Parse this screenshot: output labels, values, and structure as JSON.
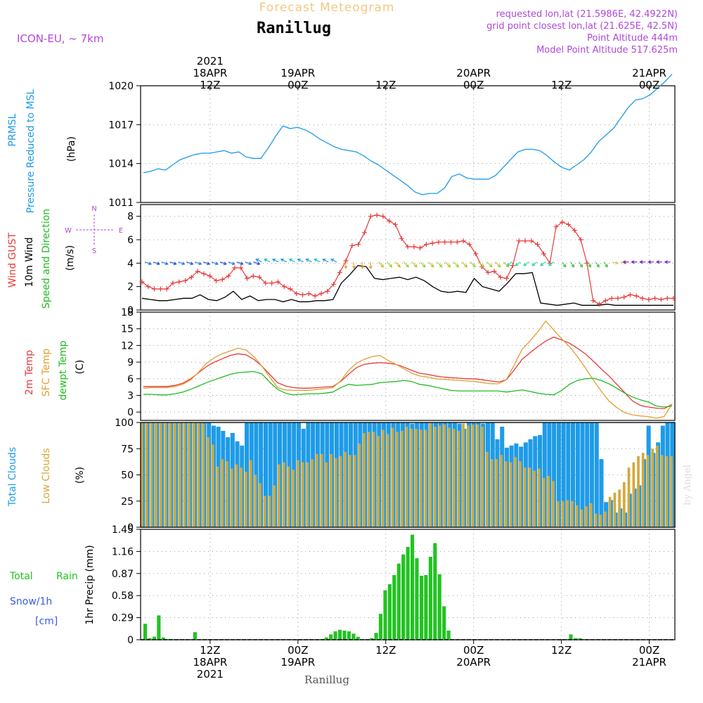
{
  "header": {
    "product": "Forecast Meteogram",
    "location": "Ranillug",
    "model": "ICON-EU, ~ 7km",
    "requested": "requested lon,lat (21.5986E, 42.4922N)",
    "grid_point": "grid point closest lon,lat (21.625E, 42.5N)",
    "point_altitude": "Point Altitude 444m",
    "model_altitude": "Model Point Altitude 517.625m",
    "footer_location": "Ranillug",
    "watermark": "by Angel"
  },
  "time_axis": {
    "top_labels": [
      {
        "line1": "2021",
        "line2": "18APR",
        "line3": "12Z",
        "t": 3
      },
      {
        "line1": "",
        "line2": "19APR",
        "line3": "00Z",
        "t": 15
      },
      {
        "line1": "",
        "line2": "",
        "line3": "12Z",
        "t": 27
      },
      {
        "line1": "",
        "line2": "20APR",
        "line3": "00Z",
        "t": 39
      },
      {
        "line1": "",
        "line2": "",
        "line3": "12Z",
        "t": 51
      },
      {
        "line1": "",
        "line2": "21APR",
        "line3": "00Z",
        "t": 63
      }
    ],
    "bottom_labels": [
      {
        "line1": "12Z",
        "line2": "18APR",
        "line3": "2021",
        "t": 3
      },
      {
        "line1": "00Z",
        "line2": "19APR",
        "line3": "",
        "t": 15
      },
      {
        "line1": "12Z",
        "line2": "",
        "line3": "",
        "t": 27
      },
      {
        "line1": "00Z",
        "line2": "20APR",
        "line3": "",
        "t": 39
      },
      {
        "line1": "12Z",
        "line2": "",
        "line3": "",
        "t": 51
      },
      {
        "line1": "00Z",
        "line2": "21APR",
        "line3": "",
        "t": 63
      }
    ]
  },
  "panels": {
    "pressure": {
      "label1": "PRMSL",
      "label2": "Pressure Reduced to MSL",
      "unit": "(hPa)",
      "color1": "#1e9be8",
      "color2": "#1e9be8"
    },
    "wind": {
      "label1": "Wind GUST",
      "label2": "10m Wind",
      "label3": "Speed and Direction",
      "unit": "(m/s)",
      "compass_n": "N",
      "compass_s": "S",
      "compass_w": "W",
      "compass_e": "E"
    },
    "temp": {
      "label1": "2m Temp",
      "label2": "SFC Temp",
      "label3": "dewpt Temp",
      "unit": "(C)"
    },
    "clouds": {
      "label1": "Total Clouds",
      "label2": "Low Clouds",
      "unit": "(%)"
    },
    "precip": {
      "label1": "Total",
      "label2": "Rain",
      "label3": "Snow/1h",
      "label4": "[cm]",
      "axis_label": "1hr Precip (mm)"
    }
  },
  "colors": {
    "pressure": "#1e9be8",
    "gust": "#e83a3a",
    "wind": "#000000",
    "t2m": "#e83a3a",
    "tsfc": "#e0a030",
    "dewpt": "#22bb22",
    "total_clouds": "#1e9be8",
    "low_clouds": "#d4a838",
    "rain": "#22c322",
    "snow": "#3a5ae8",
    "header_orange": "#f4c882",
    "header_purple": "#b048d8"
  },
  "chart_data": [
    {
      "type": "line",
      "name": "pressure",
      "ylabel": "PRMSL",
      "ylim": [
        1011,
        1020
      ],
      "yticks": [
        1011,
        1014,
        1017,
        1020
      ],
      "x_start": 0,
      "x_end": 64,
      "series": [
        {
          "name": "PRMSL",
          "values": [
            1013.3,
            1013.4,
            1013.6,
            1013.5,
            1013.9,
            1014.3,
            1014.5,
            1014.7,
            1014.8,
            1014.8,
            1014.9,
            1015.0,
            1014.8,
            1014.9,
            1014.5,
            1014.4,
            1014.4,
            1015.2,
            1016.1,
            1016.9,
            1016.7,
            1016.8,
            1016.6,
            1016.3,
            1015.9,
            1015.6,
            1015.3,
            1015.1,
            1015.0,
            1014.9,
            1014.6,
            1014.2,
            1013.9,
            1013.5,
            1013.1,
            1012.7,
            1012.3,
            1011.8,
            1011.6,
            1011.7,
            1011.7,
            1012.1,
            1013.0,
            1013.2,
            1012.9,
            1012.8,
            1012.8,
            1012.8,
            1013.1,
            1013.7,
            1014.3,
            1014.9,
            1015.1,
            1015.1,
            1015.0,
            1014.6,
            1014.1,
            1013.7,
            1013.5,
            1013.9,
            1014.3,
            1014.9,
            1015.7,
            1016.2,
            1016.7,
            1017.5,
            1018.3,
            1018.9,
            1019.0,
            1019.3,
            1019.8,
            1020.3,
            1020.9
          ]
        }
      ]
    },
    {
      "type": "line",
      "name": "wind",
      "ylim": [
        0,
        9
      ],
      "yticks": [
        0,
        2,
        4,
        6,
        8
      ],
      "series": [
        {
          "name": "Wind GUST",
          "values": [
            2.4,
            2.0,
            1.8,
            1.8,
            1.8,
            2.3,
            2.4,
            2.5,
            2.8,
            3.3,
            3.1,
            2.9,
            2.5,
            2.6,
            2.9,
            3.6,
            3.6,
            2.7,
            2.9,
            2.8,
            2.3,
            2.3,
            2.4,
            2.0,
            1.8,
            1.4,
            1.3,
            1.4,
            1.2,
            1.4,
            1.6,
            2.2,
            3.2,
            4.2,
            5.5,
            5.6,
            6.6,
            8.0,
            8.1,
            8.0,
            7.6,
            7.3,
            6.1,
            5.4,
            5.4,
            5.3,
            5.6,
            5.7,
            5.8,
            5.8,
            5.8,
            5.8,
            5.9,
            5.6,
            4.8,
            3.7,
            3.2,
            3.3,
            2.8,
            2.7,
            3.8,
            5.9,
            5.9,
            5.9,
            5.6,
            4.8,
            4.0,
            7.1,
            7.5,
            7.3,
            6.8,
            6.0,
            4.0,
            0.8,
            0.5,
            0.8,
            1.0,
            1.0,
            1.1,
            1.3,
            1.2,
            1.0,
            0.9,
            1.0,
            0.9,
            1.0,
            1.0
          ],
          "x_step": 0.75
        },
        {
          "name": "10m Wind",
          "values": [
            1.0,
            0.9,
            0.8,
            0.8,
            0.9,
            1.0,
            1.0,
            1.3,
            0.9,
            0.8,
            1.1,
            1.6,
            0.9,
            1.2,
            0.8,
            0.9,
            0.9,
            0.7,
            0.9,
            0.7,
            0.7,
            0.8,
            0.8,
            0.9,
            2.3,
            3.0,
            3.8,
            3.7,
            2.7,
            2.6,
            2.7,
            2.8,
            2.6,
            2.8,
            2.5,
            2.0,
            1.6,
            1.5,
            1.6,
            1.5,
            2.7,
            2.0,
            1.8,
            1.6,
            2.3,
            3.1,
            3.1,
            3.2,
            0.6,
            0.5,
            0.4,
            0.5,
            0.6,
            0.4,
            0.4,
            0.4,
            0.5,
            0.4,
            0.4,
            0.4,
            0.4,
            0.4,
            0.4,
            0.4,
            0.4
          ]
        }
      ],
      "arrow_level": 4.1
    },
    {
      "type": "line",
      "name": "temperature",
      "ylim": [
        -1.5,
        18
      ],
      "yticks": [
        0,
        3,
        6,
        9,
        12,
        15,
        18
      ],
      "series": [
        {
          "name": "2m Temp",
          "values": [
            4.6,
            4.6,
            4.6,
            4.6,
            4.8,
            5.2,
            6.0,
            7.1,
            8.2,
            9.0,
            9.6,
            10.2,
            10.5,
            10.3,
            9.5,
            8.3,
            6.8,
            5.3,
            4.7,
            4.4,
            4.3,
            4.3,
            4.4,
            4.5,
            4.6,
            5.5,
            6.8,
            8.0,
            8.6,
            8.8,
            8.9,
            8.8,
            8.6,
            8.1,
            7.5,
            7.0,
            6.8,
            6.5,
            6.3,
            6.2,
            6.1,
            6.0,
            6.0,
            5.8,
            5.6,
            5.4,
            5.8,
            7.6,
            9.5,
            10.7,
            11.8,
            12.8,
            13.5,
            13.0,
            12.4,
            11.5,
            10.5,
            9.2,
            7.8,
            6.5,
            5.0,
            3.5,
            2.0,
            1.2,
            0.9,
            0.7,
            0.6,
            1.4
          ]
        },
        {
          "name": "SFC Temp",
          "values": [
            4.3,
            4.4,
            4.4,
            4.4,
            4.6,
            5.0,
            5.8,
            7.2,
            8.8,
            9.8,
            10.5,
            11.0,
            11.5,
            11.2,
            10.0,
            8.3,
            6.3,
            4.4,
            4.0,
            3.9,
            3.9,
            3.9,
            4.1,
            4.2,
            4.4,
            5.6,
            7.5,
            8.8,
            9.5,
            10.0,
            10.2,
            9.3,
            8.6,
            7.8,
            7.0,
            6.5,
            6.3,
            6.0,
            5.9,
            5.8,
            5.7,
            5.6,
            5.5,
            5.3,
            5.1,
            5.1,
            5.8,
            8.5,
            11.3,
            12.8,
            14.5,
            16.4,
            14.8,
            13.2,
            11.8,
            10.0,
            8.0,
            5.8,
            3.8,
            2.0,
            0.8,
            -0.1,
            -0.5,
            -0.7,
            -0.8,
            -1.1,
            -0.8,
            1.5
          ]
        },
        {
          "name": "dewpt Temp",
          "values": [
            3.2,
            3.2,
            3.1,
            3.1,
            3.3,
            3.6,
            4.1,
            4.7,
            5.3,
            5.8,
            6.3,
            6.8,
            7.1,
            7.2,
            7.3,
            6.9,
            5.4,
            4.1,
            3.4,
            3.1,
            3.2,
            3.3,
            3.3,
            3.4,
            3.6,
            4.4,
            5.0,
            4.8,
            4.9,
            5.0,
            5.3,
            5.4,
            5.5,
            5.7,
            5.5,
            5.0,
            4.8,
            4.5,
            4.2,
            3.9,
            3.8,
            3.8,
            3.8,
            3.8,
            3.8,
            3.8,
            3.6,
            3.8,
            4.0,
            3.7,
            3.4,
            3.2,
            3.1,
            3.9,
            5.0,
            5.7,
            6.0,
            6.1,
            5.7,
            5.1,
            4.3,
            3.4,
            2.7,
            2.2,
            1.8,
            1.1,
            0.9,
            1.1
          ]
        }
      ]
    },
    {
      "type": "bar",
      "name": "clouds",
      "ylim": [
        0,
        100
      ],
      "yticks": [
        0,
        25,
        50,
        75,
        100
      ],
      "series": [
        {
          "name": "Total Clouds",
          "values": [
            100,
            100,
            100,
            100,
            100,
            100,
            100,
            100,
            100,
            100,
            100,
            100,
            100,
            100,
            100,
            97,
            96,
            92,
            86,
            90,
            82,
            78,
            100,
            100,
            100,
            100,
            100,
            100,
            100,
            100,
            100,
            100,
            100,
            100,
            94,
            100,
            100,
            100,
            100,
            100,
            100,
            100,
            100,
            100,
            100,
            100,
            100,
            100,
            100,
            100,
            100,
            100,
            100,
            100,
            100,
            100,
            100,
            99,
            100,
            100,
            100,
            100,
            100,
            100,
            100,
            100,
            100,
            99,
            94,
            100,
            100,
            100,
            99,
            100,
            100,
            84,
            96,
            76,
            78,
            80,
            77,
            81,
            84,
            87,
            88,
            100,
            100,
            100,
            100,
            100,
            100,
            100,
            100,
            100,
            100,
            100,
            100,
            65,
            24,
            26,
            14,
            18,
            14,
            32,
            37,
            40,
            65,
            97,
            71,
            81,
            97,
            100,
            100
          ]
        },
        {
          "name": "Low Clouds",
          "values": [
            100,
            100,
            100,
            100,
            100,
            100,
            100,
            100,
            100,
            100,
            100,
            100,
            100,
            99,
            86,
            79,
            58,
            65,
            63,
            56,
            60,
            57,
            53,
            64,
            50,
            42,
            30,
            30,
            40,
            60,
            62,
            58,
            55,
            64,
            62,
            62,
            65,
            70,
            70,
            62,
            70,
            66,
            68,
            72,
            69,
            69,
            80,
            90,
            91,
            91,
            87,
            93,
            89,
            95,
            91,
            92,
            96,
            94,
            94,
            93,
            93,
            100,
            96,
            97,
            98,
            95,
            94,
            92,
            99,
            97,
            98,
            98,
            96,
            72,
            65,
            65,
            69,
            63,
            62,
            67,
            63,
            57,
            57,
            54,
            56,
            47,
            49,
            44,
            25,
            25,
            26,
            25,
            21,
            17,
            20,
            23,
            13,
            12,
            15,
            29,
            33,
            36,
            43,
            57,
            62,
            68,
            71,
            69,
            75,
            78,
            69,
            68,
            68
          ]
        }
      ]
    },
    {
      "type": "bar",
      "name": "precipitation",
      "ylabel": "1hr Precip (mm)",
      "ylim": [
        0,
        1.45
      ],
      "yticks": [
        0,
        0.29,
        0.58,
        0.87,
        1.16,
        1.45
      ],
      "series": [
        {
          "name": "Total Rain",
          "values": [
            0.21,
            0.02,
            0.04,
            0.32,
            0.03,
            0.01,
            0,
            0,
            0,
            0,
            0,
            0.1,
            0,
            0,
            0,
            0,
            0,
            0,
            0,
            0,
            0,
            0,
            0,
            0,
            0,
            0,
            0,
            0,
            0,
            0,
            0,
            0,
            0,
            0,
            0,
            0,
            0,
            0,
            0,
            0.01,
            0.03,
            0.07,
            0.11,
            0.13,
            0.12,
            0.11,
            0.08,
            0.04,
            0,
            0,
            0.02,
            0.09,
            0.34,
            0.65,
            0.73,
            0.85,
            1.0,
            1.12,
            1.22,
            1.38,
            1.07,
            0.84,
            0.85,
            1.09,
            1.27,
            0.86,
            0.44,
            0.12,
            0,
            0,
            0,
            0,
            0,
            0,
            0,
            0,
            0,
            0,
            0,
            0,
            0,
            0,
            0,
            0,
            0,
            0,
            0,
            0,
            0,
            0,
            0,
            0,
            0,
            0,
            0.07,
            0.02,
            0.02,
            0,
            0,
            0,
            0,
            0,
            0,
            0,
            0,
            0,
            0,
            0,
            0,
            0,
            0,
            0,
            0,
            0,
            0,
            0,
            0,
            0
          ]
        }
      ]
    }
  ]
}
